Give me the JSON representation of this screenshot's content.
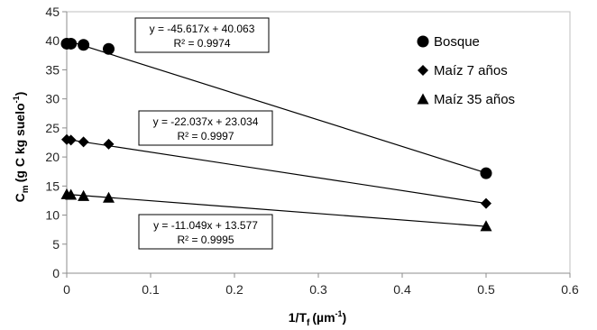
{
  "chart_data": {
    "type": "scatter",
    "xlabel": "1/T",
    "xlabel_sub": "f",
    "xlabel_unit": "(µm",
    "xlabel_sup": "-1",
    "xlabel_end": ")",
    "ylabel": "C",
    "ylabel_sub": "m",
    "ylabel_unit": "(g C kg suelo",
    "ylabel_sup": "-1",
    "ylabel_end": ")",
    "xlim": [
      0,
      0.6
    ],
    "ylim": [
      0,
      45
    ],
    "xticks": [
      0,
      0.1,
      0.2,
      0.3,
      0.4,
      0.5,
      0.6
    ],
    "xtick_labels": [
      "0",
      "0.1",
      "0.2",
      "0.3",
      "0.4",
      "0.5",
      "0.6"
    ],
    "yticks": [
      0,
      5,
      10,
      15,
      20,
      25,
      30,
      35,
      40,
      45
    ],
    "ytick_labels": [
      "0",
      "5",
      "10",
      "15",
      "20",
      "25",
      "30",
      "35",
      "40",
      "45"
    ],
    "grid": false,
    "legend_position": "right",
    "series": [
      {
        "name": "Bosque",
        "marker": "circle",
        "x": [
          0,
          0.005,
          0.02,
          0.05,
          0.5
        ],
        "y": [
          39.5,
          39.5,
          39.3,
          38.6,
          17.2
        ],
        "trend": {
          "slope": -45.617,
          "intercept": 40.063,
          "x0": 0,
          "x1": 0.5
        },
        "equation": "y = -45.617x + 40.063",
        "r2": "R² = 0.9974"
      },
      {
        "name": "Maíz 7 años",
        "marker": "diamond",
        "x": [
          0,
          0.005,
          0.02,
          0.05,
          0.5
        ],
        "y": [
          23.0,
          22.9,
          22.6,
          22.2,
          12.0
        ],
        "trend": {
          "slope": -22.037,
          "intercept": 23.034,
          "x0": 0,
          "x1": 0.5
        },
        "equation": "y = -22.037x + 23.034",
        "r2": "R² = 0.9997"
      },
      {
        "name": "Maíz 35 años",
        "marker": "triangle",
        "x": [
          0,
          0.005,
          0.02,
          0.05,
          0.5
        ],
        "y": [
          13.6,
          13.5,
          13.3,
          13.0,
          8.1
        ],
        "trend": {
          "slope": -11.049,
          "intercept": 13.577,
          "x0": 0,
          "x1": 0.5
        },
        "equation": "y = -11.049x + 13.577",
        "r2": "R² = 0.9995"
      }
    ]
  }
}
